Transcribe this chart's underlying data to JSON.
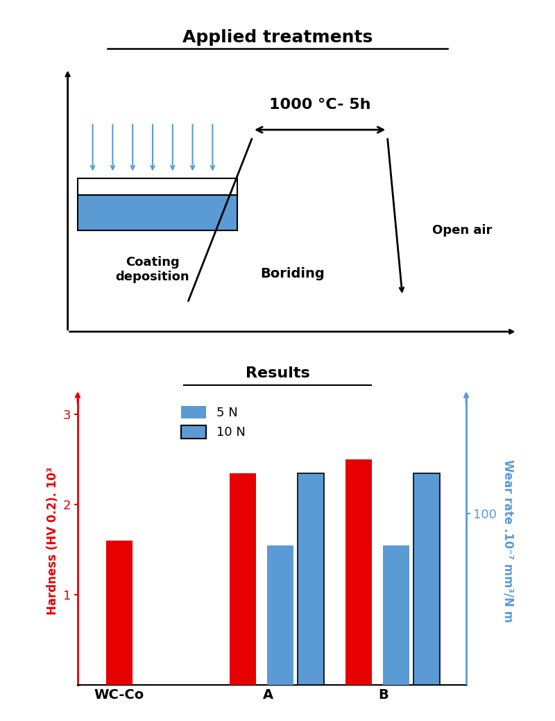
{
  "title_top": "Applied treatments",
  "title_bottom": "Results",
  "coating_label": "Coating\ndeposition",
  "boriding_label": "Boriding",
  "temp_label": "1000 °C- 5h",
  "open_air_label": "Open air",
  "bar_categories": [
    "WC-Co",
    "A",
    "B"
  ],
  "hardness_values": [
    1.6,
    2.35,
    2.5
  ],
  "wear_5N_values": [
    null,
    1.55,
    1.55
  ],
  "wear_10N_values": [
    null,
    2.35,
    2.35
  ],
  "ylabel_left": "Hardness (HV 0.2). 10³",
  "ylabel_right": "Wear rate .10⁻⁷ mm³/N m",
  "yticks_left": [
    1,
    2,
    3
  ],
  "ytick_right_label": "100",
  "legend_5N": "5 N",
  "legend_10N": "10 N",
  "red_color": "#e60000",
  "blue_color": "#5b9bd5",
  "bar_color_red": "#e60000",
  "bar_color_blue": "#5b9bd5",
  "blue_deposition_color": "#5b9bd5",
  "ylim": [
    0,
    3.2
  ]
}
